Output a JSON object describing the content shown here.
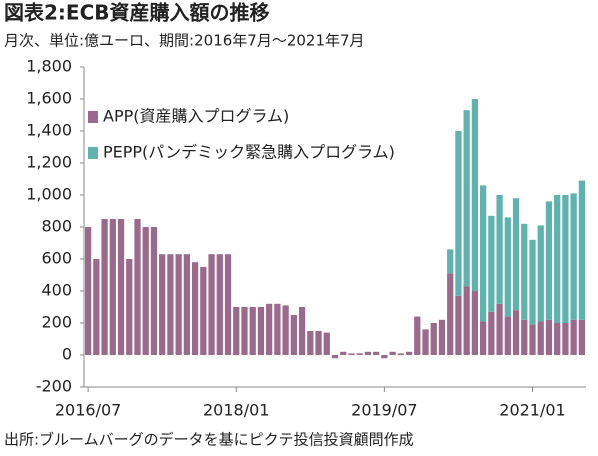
{
  "chart_data": {
    "type": "bar",
    "stacked": true,
    "title": "図表2:ECB資産購入額の推移",
    "subtitle": "月次、単位:億ユーロ、期間:2016年7月〜2021年7月",
    "source": "出所:ブルームバーグのデータを基にピクテ投信投資顧問作成",
    "categories": [
      "2016/07",
      null,
      null,
      null,
      null,
      null,
      null,
      null,
      null,
      null,
      null,
      null,
      null,
      null,
      null,
      null,
      null,
      null,
      "2018/01",
      null,
      null,
      null,
      null,
      null,
      null,
      null,
      null,
      null,
      null,
      null,
      null,
      null,
      null,
      null,
      null,
      null,
      "2019/07",
      null,
      null,
      null,
      null,
      null,
      null,
      null,
      null,
      null,
      null,
      null,
      null,
      null,
      null,
      null,
      null,
      null,
      "2021/01",
      null,
      null,
      null,
      null,
      null,
      null
    ],
    "series": [
      {
        "name": "APP(資産購入プログラム)",
        "color": "#9a6a8c",
        "values": [
          800,
          600,
          850,
          850,
          850,
          600,
          850,
          800,
          800,
          630,
          630,
          630,
          630,
          580,
          550,
          630,
          630,
          630,
          300,
          300,
          300,
          300,
          320,
          320,
          310,
          250,
          300,
          150,
          150,
          140,
          -20,
          20,
          10,
          10,
          20,
          20,
          -20,
          20,
          10,
          20,
          240,
          160,
          200,
          220,
          510,
          370,
          430,
          400,
          210,
          270,
          320,
          240,
          280,
          220,
          190,
          210,
          220,
          200,
          200,
          220,
          220
        ]
      },
      {
        "name": "PEPP(パンデミック緊急購入プログラム)",
        "color": "#5fb2ae",
        "values": [
          0,
          0,
          0,
          0,
          0,
          0,
          0,
          0,
          0,
          0,
          0,
          0,
          0,
          0,
          0,
          0,
          0,
          0,
          0,
          0,
          0,
          0,
          0,
          0,
          0,
          0,
          0,
          0,
          0,
          0,
          0,
          0,
          0,
          0,
          0,
          0,
          0,
          0,
          0,
          0,
          0,
          0,
          0,
          0,
          150,
          1030,
          1100,
          1200,
          850,
          600,
          680,
          620,
          700,
          600,
          530,
          600,
          740,
          800,
          800,
          790,
          870
        ]
      }
    ],
    "ylim": [
      -200,
      1800
    ],
    "yticks": [
      -200,
      0,
      200,
      400,
      600,
      800,
      {
        "value": 1000,
        "label": "1,000"
      },
      {
        "value": 1200,
        "label": "1,200"
      },
      {
        "value": 1400,
        "label": "1,400"
      },
      {
        "value": 1600,
        "label": "1,600"
      },
      {
        "value": 1800,
        "label": "1,800"
      }
    ],
    "legend": "upper-left"
  }
}
